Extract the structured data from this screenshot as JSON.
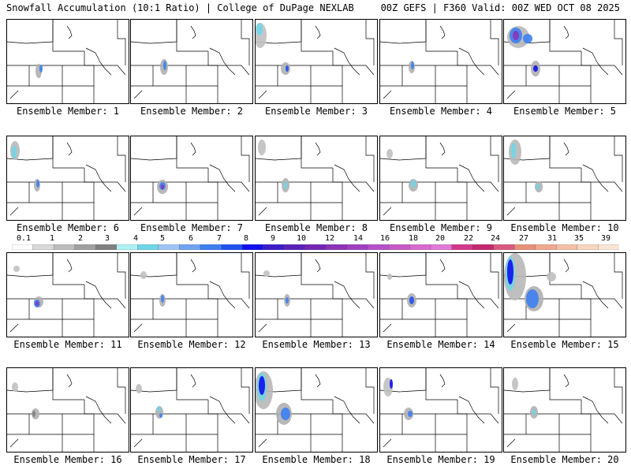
{
  "header": {
    "left": "Snowfall Accumulation (10:1 Ratio) | College of DuPage NEXLAB",
    "right": "00Z GEFS | F360 Valid: 00Z WED OCT 08 2025"
  },
  "colorbar": {
    "labels": [
      "0.1",
      "1",
      "2",
      "3",
      "4",
      "5",
      "6",
      "7",
      "8",
      "9",
      "10",
      "12",
      "14",
      "16",
      "18",
      "20",
      "22",
      "24",
      "27",
      "31",
      "35",
      "39"
    ],
    "colors": [
      "#ffffff",
      "#d9d9d9",
      "#bdbdbd",
      "#a0a0a0",
      "#808080",
      "#aef1f3",
      "#6fd6e8",
      "#9ec4f5",
      "#6fa2f2",
      "#3d7ff0",
      "#2050f0",
      "#1010ee",
      "#3c1cc8",
      "#5a22b8",
      "#7426b4",
      "#8c34b8",
      "#a040c0",
      "#b650c8",
      "#c85ac8",
      "#d86ad0",
      "#e07ad8",
      "#d4388c",
      "#c42870",
      "#d85a80",
      "#e8907a",
      "#f0aa90",
      "#f4c0a8",
      "#f8d6c0",
      "#fbe6d6"
    ]
  },
  "caption_prefix": "Ensemble Member:",
  "members": [
    {
      "id": "1"
    },
    {
      "id": "2"
    },
    {
      "id": "3"
    },
    {
      "id": "4"
    },
    {
      "id": "5"
    },
    {
      "id": "6"
    },
    {
      "id": "7"
    },
    {
      "id": "8"
    },
    {
      "id": "9"
    },
    {
      "id": "10"
    },
    {
      "id": "11"
    },
    {
      "id": "12"
    },
    {
      "id": "13"
    },
    {
      "id": "14"
    },
    {
      "id": "15"
    },
    {
      "id": "16"
    },
    {
      "id": "17"
    },
    {
      "id": "18"
    },
    {
      "id": "19"
    },
    {
      "id": "20"
    }
  ]
}
